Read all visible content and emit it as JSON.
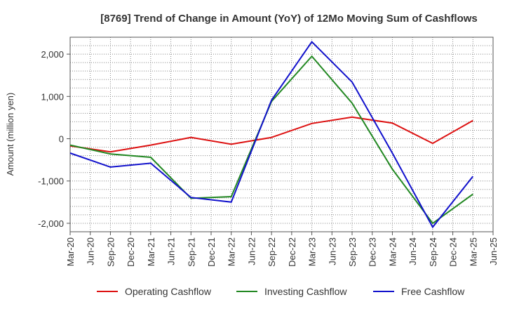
{
  "chart_data": {
    "type": "line",
    "title": "[8769]  Trend of Change in Amount (YoY) of 12Mo Moving Sum of Cashflows",
    "ylabel": "Amount (million yen)",
    "xlabel": "",
    "ylim": [
      -2200,
      2400
    ],
    "yticks": [
      2000,
      1000,
      0,
      -1000,
      -2000
    ],
    "ytick_labels": [
      "2,000",
      "1,000",
      "0",
      "-1,000",
      "-2,000"
    ],
    "categories": [
      "Mar-20",
      "Jun-20",
      "Sep-20",
      "Dec-20",
      "Mar-21",
      "Jun-21",
      "Sep-21",
      "Dec-21",
      "Mar-22",
      "Jun-22",
      "Sep-22",
      "Dec-22",
      "Mar-23",
      "Jun-23",
      "Sep-23",
      "Dec-23",
      "Mar-24",
      "Jun-24",
      "Sep-24",
      "Dec-24",
      "Mar-25",
      "Jun-25"
    ],
    "grid": true,
    "legend_position": "bottom",
    "series": [
      {
        "name": "Operating Cashflow",
        "color": "#dd1111",
        "x": [
          "Mar-20",
          "Sep-20",
          "Mar-21",
          "Sep-21",
          "Mar-22",
          "Sep-22",
          "Mar-23",
          "Sep-23",
          "Mar-24",
          "Sep-24",
          "Mar-25"
        ],
        "values": [
          -170,
          -310,
          -150,
          30,
          -130,
          30,
          360,
          510,
          370,
          -110,
          430
        ]
      },
      {
        "name": "Investing Cashflow",
        "color": "#228822",
        "x": [
          "Mar-20",
          "Sep-20",
          "Mar-21",
          "Sep-21",
          "Mar-22",
          "Sep-22",
          "Mar-23",
          "Sep-23",
          "Mar-24",
          "Sep-24",
          "Mar-25"
        ],
        "values": [
          -150,
          -360,
          -440,
          -1410,
          -1370,
          880,
          1950,
          840,
          -720,
          -2000,
          -1310
        ]
      },
      {
        "name": "Free Cashflow",
        "color": "#1111cc",
        "x": [
          "Mar-20",
          "Sep-20",
          "Mar-21",
          "Sep-21",
          "Mar-22",
          "Sep-22",
          "Mar-23",
          "Sep-23",
          "Mar-24",
          "Sep-24",
          "Mar-25"
        ],
        "values": [
          -340,
          -670,
          -580,
          -1390,
          -1500,
          910,
          2290,
          1340,
          -340,
          -2090,
          -890
        ]
      }
    ]
  }
}
